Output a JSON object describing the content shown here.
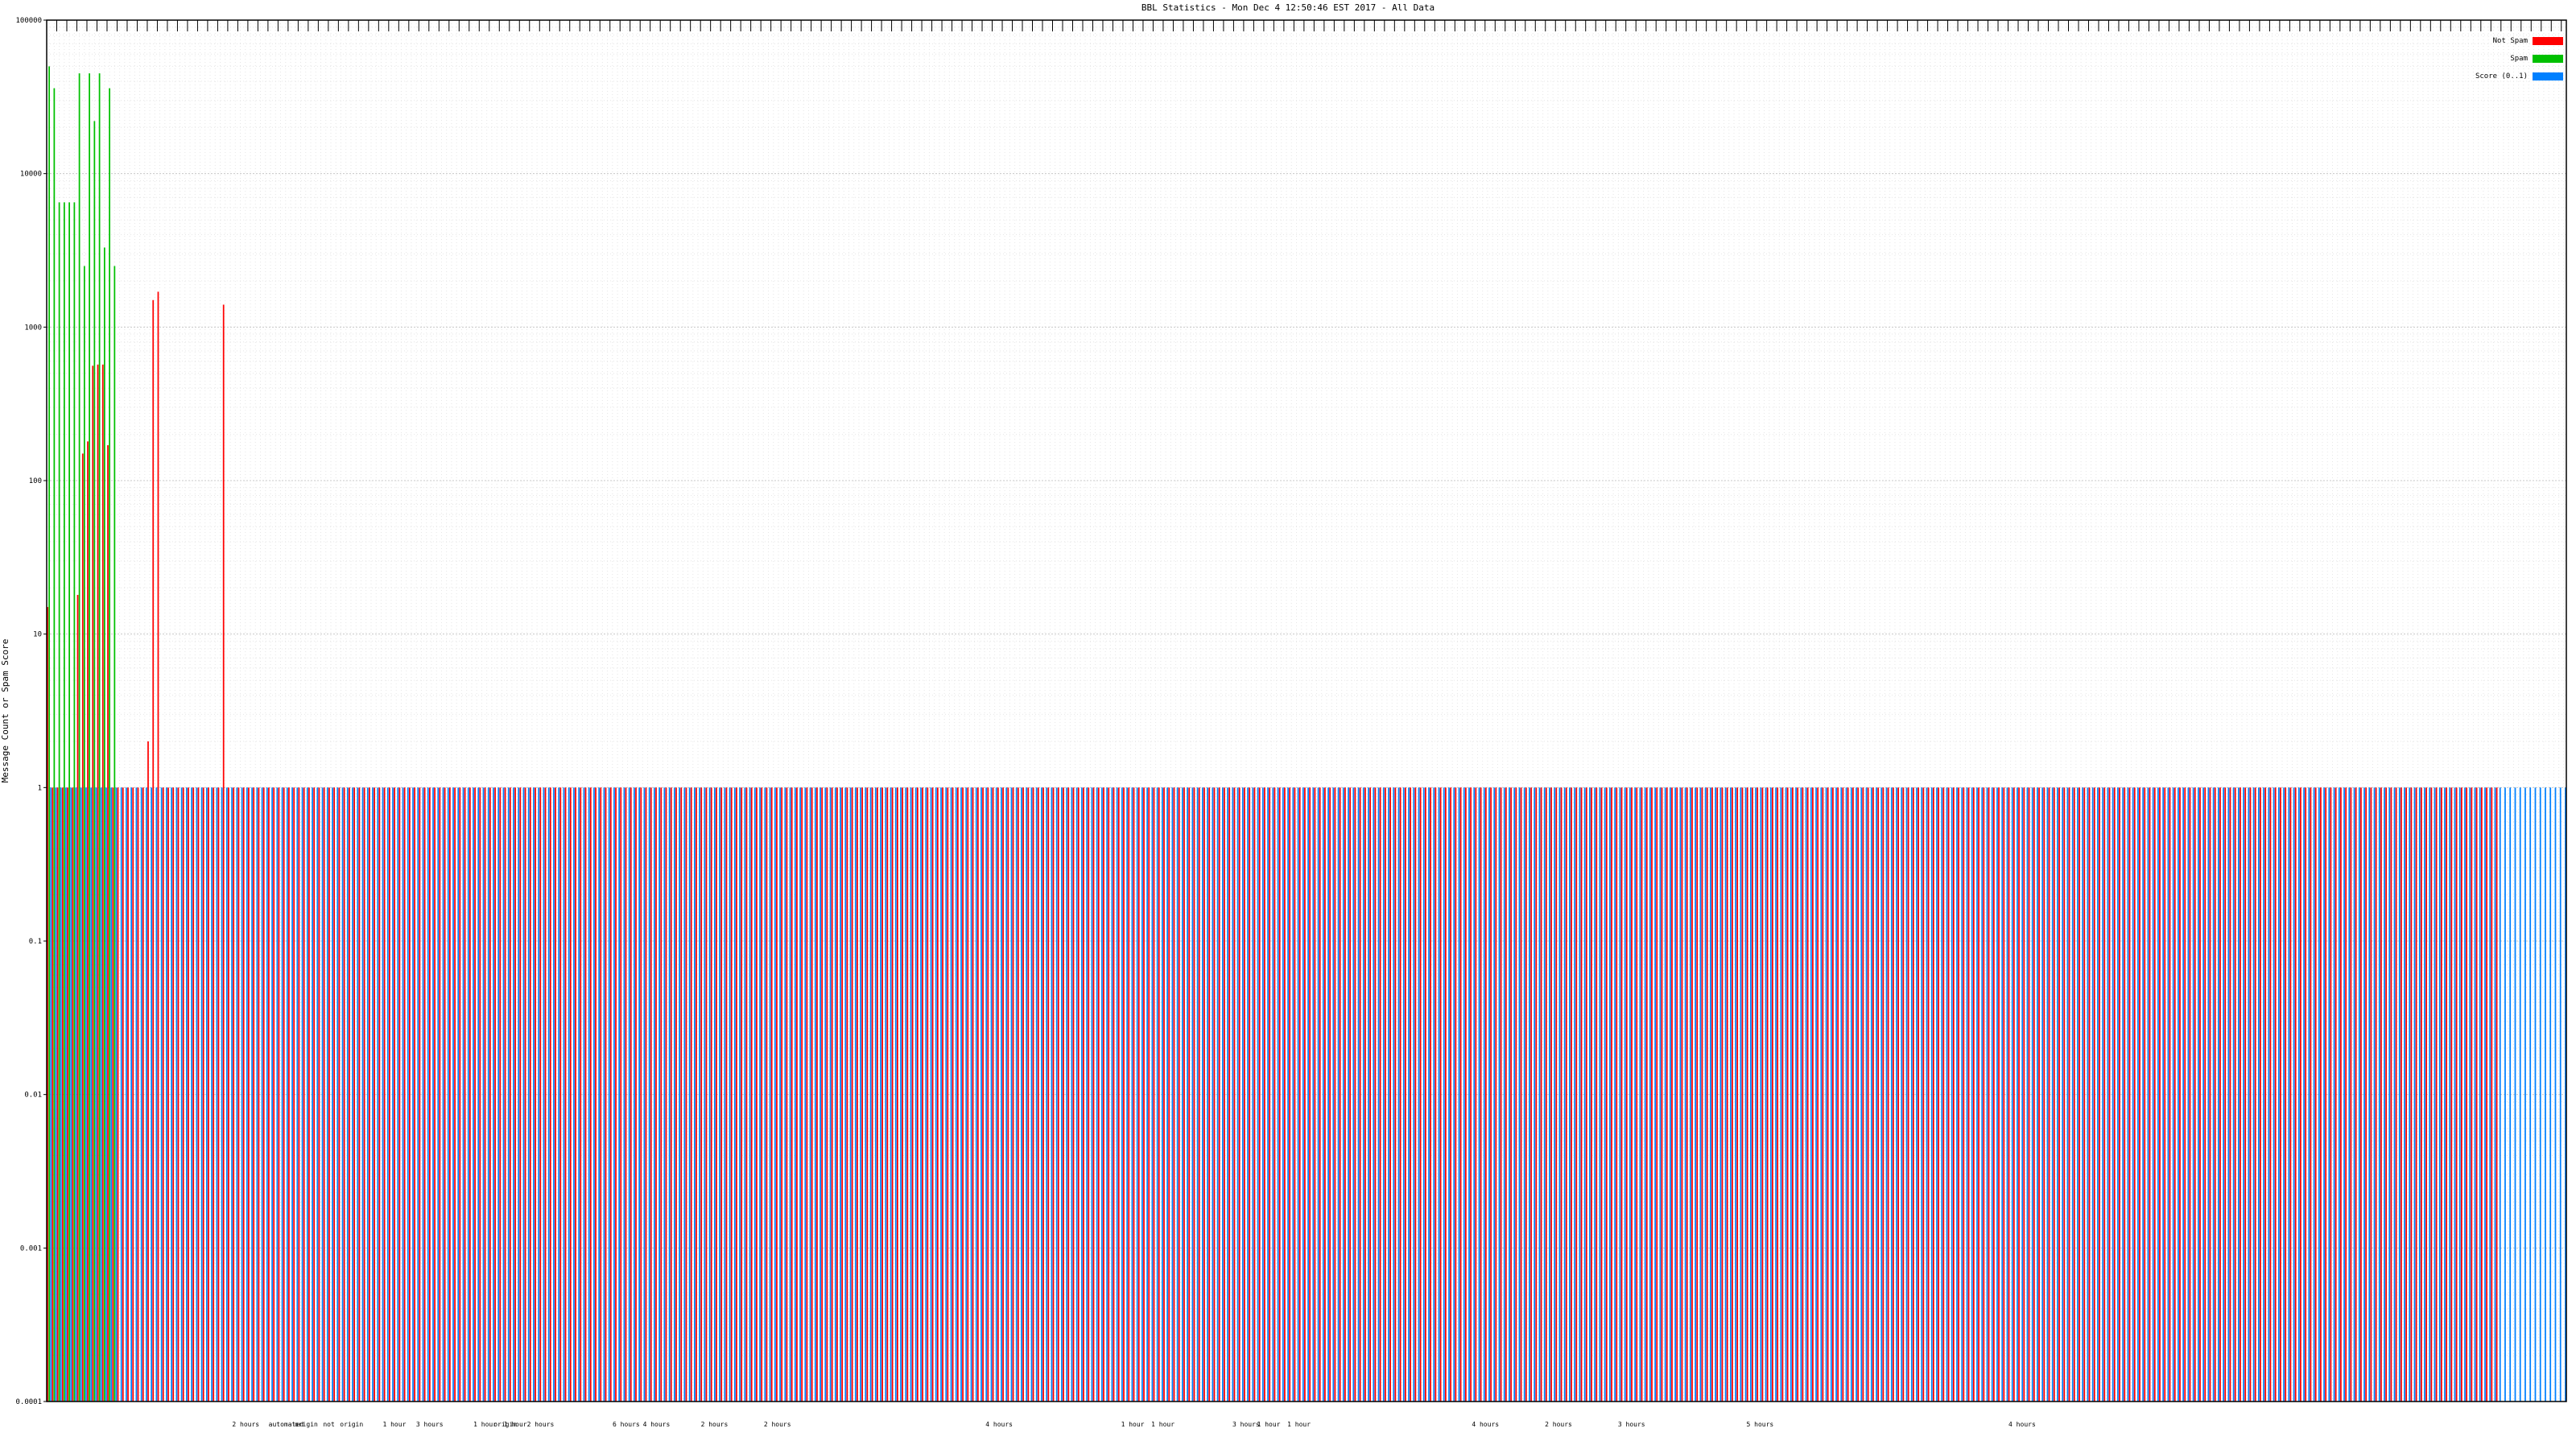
{
  "chart_data": {
    "type": "bar",
    "title": "BBL Statistics - Mon Dec  4 12:50:46 EST 2017 - All Data",
    "ylabel": "Message Count or Spam Score",
    "y_scale": "log",
    "ylim": [
      0.0001,
      100000
    ],
    "yticks": [
      "0.0001",
      "0.001",
      "0.01",
      "0.1",
      "1",
      "10",
      "100",
      "1000",
      "10000",
      "100000"
    ],
    "grid": true,
    "legend_position": "top-right",
    "colors": {
      "not_spam": "#ff0000",
      "spam": "#00c000",
      "score": "#0080ff"
    },
    "series": [
      {
        "name": "Not Spam",
        "color": "#ff0000",
        "values": [
          15,
          1,
          1,
          1,
          1,
          1,
          18,
          150,
          180,
          560,
          570,
          570,
          170,
          1,
          1,
          1,
          1,
          1,
          1,
          1,
          2,
          1500,
          1700,
          1,
          1,
          1,
          1,
          1,
          1,
          1,
          1,
          1,
          1,
          1,
          1,
          1400,
          1,
          1,
          1,
          1,
          1,
          1,
          1,
          1,
          1,
          1,
          1,
          1,
          1,
          1,
          1,
          1,
          1,
          1,
          1,
          1,
          1,
          1,
          1,
          1,
          1,
          1,
          1,
          1,
          1,
          1,
          1,
          1,
          1,
          1,
          1,
          1,
          1,
          1,
          1,
          1,
          1,
          1,
          1,
          1,
          1,
          1,
          1,
          1,
          1,
          1,
          1,
          1,
          1,
          1,
          1,
          1,
          1,
          1,
          1,
          1,
          1,
          1,
          1,
          1,
          1,
          1,
          1,
          1,
          1,
          1,
          1,
          1,
          1,
          1,
          1,
          1,
          1,
          1,
          1,
          1,
          1,
          1,
          1,
          1,
          1,
          1,
          1,
          1,
          1,
          1,
          1,
          1,
          1,
          1,
          1,
          1,
          1,
          1,
          1,
          1,
          1,
          1,
          1,
          1,
          1,
          1,
          1,
          1,
          1,
          1,
          1,
          1,
          1,
          1,
          1,
          1,
          1,
          1,
          1,
          1,
          1,
          1,
          1,
          1,
          1,
          1,
          1,
          1,
          1,
          1,
          1,
          1,
          1,
          1,
          1,
          1,
          1,
          1,
          1,
          1,
          1,
          1,
          1,
          1,
          1,
          1,
          1,
          1,
          1,
          1,
          1,
          1,
          1,
          1,
          1,
          1,
          1,
          1,
          1,
          1,
          1,
          1,
          1,
          1,
          1,
          1,
          1,
          1,
          1,
          1,
          1,
          1,
          1,
          1,
          1,
          1,
          1,
          1,
          1,
          1,
          1,
          1,
          1,
          1,
          1,
          1,
          1,
          1,
          1,
          1,
          1,
          1,
          1,
          1,
          1,
          1,
          1,
          1,
          1,
          1,
          1,
          1,
          1,
          1,
          1,
          1,
          1,
          1,
          1,
          1,
          1,
          1,
          1,
          1,
          1,
          1,
          1,
          1,
          1,
          1,
          1,
          1,
          1,
          1,
          1,
          1,
          1,
          1,
          1,
          1,
          1,
          1,
          1,
          1,
          1,
          1,
          1,
          1,
          1,
          1,
          1,
          1,
          1,
          1,
          1,
          1,
          1,
          1,
          1,
          1,
          1,
          1,
          1,
          1,
          1,
          1,
          1,
          1,
          1,
          1,
          1,
          1,
          1,
          1,
          1,
          1,
          1,
          1,
          1,
          1,
          1,
          1,
          1,
          1,
          1,
          1,
          1,
          1,
          1,
          1,
          1,
          1,
          1,
          1,
          1,
          1,
          1,
          1,
          1,
          1,
          1,
          1,
          1,
          1,
          1,
          1,
          1,
          1,
          1,
          1,
          1,
          1,
          1,
          1,
          1,
          1,
          1,
          1,
          1,
          1,
          1,
          1,
          1,
          1,
          1,
          1,
          1,
          1,
          1,
          1,
          1,
          1,
          1,
          1,
          1,
          1,
          1,
          1,
          1,
          1,
          1,
          1,
          1,
          1,
          1,
          1,
          1,
          1,
          1,
          1,
          1,
          1,
          1,
          1,
          1,
          1,
          1,
          1,
          1,
          1,
          1,
          1,
          1,
          1,
          1,
          1,
          1,
          1,
          1,
          1,
          1,
          1,
          1,
          1,
          1,
          1,
          1,
          1,
          1,
          1,
          1,
          1,
          1,
          1,
          1,
          1,
          1,
          1,
          1,
          1,
          1,
          1,
          1,
          1,
          1,
          1,
          1,
          1,
          1,
          1,
          1,
          1,
          1,
          1,
          1,
          1,
          1,
          1,
          1,
          1,
          1,
          1,
          1,
          1,
          1,
          1,
          1,
          1,
          1,
          1,
          1,
          1,
          1,
          1,
          1,
          1,
          1,
          1,
          1,
          1,
          1,
          1,
          1,
          1,
          1,
          1,
          1,
          1,
          1,
          1,
          1,
          1,
          1,
          1,
          1,
          1,
          1,
          1,
          1,
          1,
          1,
          1,
          1,
          1,
          1,
          1,
          1,
          1,
          1,
          1,
          1,
          1
        ]
      },
      {
        "name": "Spam",
        "color": "#00c000",
        "values": [
          50000,
          36000,
          6500,
          6500,
          6500,
          6500,
          45000,
          2500,
          45000,
          22000,
          45000,
          3300,
          36000,
          2500
        ]
      },
      {
        "name": "Score (0..1)",
        "color": "#0080ff",
        "values": [
          1,
          1,
          1,
          1,
          1,
          1,
          1,
          1,
          1,
          1,
          1,
          1,
          1,
          1,
          1,
          1,
          1,
          1,
          1,
          1,
          1,
          1,
          1,
          1,
          1,
          1,
          1,
          1,
          1,
          1,
          1,
          1,
          1,
          1,
          1,
          1,
          1,
          1,
          1,
          1,
          1,
          1,
          1,
          1,
          1,
          1,
          1,
          1,
          1,
          1,
          1,
          1,
          1,
          1,
          1,
          1,
          1,
          1,
          1,
          1,
          1,
          1,
          1,
          1,
          1,
          1,
          1,
          1,
          1,
          1,
          1,
          1,
          1,
          1,
          1,
          1,
          1,
          1,
          1,
          1,
          1,
          1,
          1,
          1,
          1,
          1,
          1,
          1,
          1,
          1,
          1,
          1,
          1,
          1,
          1,
          1,
          1,
          1,
          1,
          1,
          1,
          1,
          1,
          1,
          1,
          1,
          1,
          1,
          1,
          1,
          1,
          1,
          1,
          1,
          1,
          1,
          1,
          1,
          1,
          1,
          1,
          1,
          1,
          1,
          1,
          1,
          1,
          1,
          1,
          1,
          1,
          1,
          1,
          1,
          1,
          1,
          1,
          1,
          1,
          1,
          1,
          1,
          1,
          1,
          1,
          1,
          1,
          1,
          1,
          1,
          1,
          1,
          1,
          1,
          1,
          1,
          1,
          1,
          1,
          1,
          1,
          1,
          1,
          1,
          1,
          1,
          1,
          1,
          1,
          1,
          1,
          1,
          1,
          1,
          1,
          1,
          1,
          1,
          1,
          1,
          1,
          1,
          1,
          1,
          1,
          1,
          1,
          1,
          1,
          1,
          1,
          1,
          1,
          1,
          1,
          1,
          1,
          1,
          1,
          1,
          1,
          1,
          1,
          1,
          1,
          1,
          1,
          1,
          1,
          1,
          1,
          1,
          1,
          1,
          1,
          1,
          1,
          1,
          1,
          1,
          1,
          1,
          1,
          1,
          1,
          1,
          1,
          1,
          1,
          1,
          1,
          1,
          1,
          1,
          1,
          1,
          1,
          1,
          1,
          1,
          1,
          1,
          1,
          1,
          1,
          1,
          1,
          1,
          1,
          1,
          1,
          1,
          1,
          1,
          1,
          1,
          1,
          1,
          1,
          1,
          1,
          1,
          1,
          1,
          1,
          1,
          1,
          1,
          1,
          1,
          1,
          1,
          1,
          1,
          1,
          1,
          1,
          1,
          1,
          1,
          1,
          1,
          1,
          1,
          1,
          1,
          1,
          1,
          1,
          1,
          1,
          1,
          1,
          1,
          1,
          1,
          1,
          1,
          1,
          1,
          1,
          1,
          1,
          1,
          1,
          1,
          1,
          1,
          1,
          1,
          1,
          1,
          1,
          1,
          1,
          1,
          1,
          1,
          1,
          1,
          1,
          1,
          1,
          1,
          1,
          1,
          1,
          1,
          1,
          1,
          1,
          1,
          1,
          1,
          1,
          1,
          1,
          1,
          1,
          1,
          1,
          1,
          1,
          1,
          1,
          1,
          1,
          1,
          1,
          1,
          1,
          1,
          1,
          1,
          1,
          1,
          1,
          1,
          1,
          1,
          1,
          1,
          1,
          1,
          1,
          1,
          1,
          1,
          1,
          1,
          1,
          1,
          1,
          1,
          1,
          1,
          1,
          1,
          1,
          1,
          1,
          1,
          1,
          1,
          1,
          1,
          1,
          1,
          1,
          1,
          1,
          1,
          1,
          1,
          1,
          1,
          1,
          1,
          1,
          1,
          1,
          1,
          1,
          1,
          1,
          1,
          1,
          1,
          1,
          1,
          1,
          1,
          1,
          1,
          1,
          1,
          1,
          1,
          1,
          1,
          1,
          1,
          1,
          1,
          1,
          1,
          1,
          1,
          1,
          1,
          1,
          1,
          1,
          1,
          1,
          1,
          1,
          1,
          1,
          1,
          1,
          1,
          1,
          1,
          1,
          1,
          1,
          1,
          1,
          1,
          1,
          1,
          1,
          1,
          1,
          1,
          1,
          1,
          1,
          1,
          1,
          1,
          1,
          1,
          1,
          1,
          1,
          1,
          1,
          1,
          1,
          1,
          1,
          1,
          1,
          1,
          1,
          1,
          1,
          1,
          1,
          1,
          1,
          1,
          1,
          1,
          1,
          1,
          1,
          1,
          1,
          1,
          1,
          1,
          1,
          1,
          1,
          1,
          1,
          1,
          1
        ]
      }
    ],
    "category_groups": [
      {
        "label": "2 hours",
        "at": 0.079
      },
      {
        "label": "automated",
        "at": 0.095
      },
      {
        "label": "origin",
        "at": 0.103
      },
      {
        "label": "not",
        "at": 0.112
      },
      {
        "label": "origin",
        "at": 0.121
      },
      {
        "label": "1 hour",
        "at": 0.138
      },
      {
        "label": "3 hours",
        "at": 0.152
      },
      {
        "label": "1 hour",
        "at": 0.174
      },
      {
        "label": "origin",
        "at": 0.182
      },
      {
        "label": "1 hour",
        "at": 0.186
      },
      {
        "label": "2 hours",
        "at": 0.196
      },
      {
        "label": "6 hours",
        "at": 0.23
      },
      {
        "label": "4 hours",
        "at": 0.242
      },
      {
        "label": "2 hours",
        "at": 0.265
      },
      {
        "label": "2 hours",
        "at": 0.29
      },
      {
        "label": "4 hours",
        "at": 0.378
      },
      {
        "label": "1 hour",
        "at": 0.431
      },
      {
        "label": "1 hour",
        "at": 0.443
      },
      {
        "label": "3 hours",
        "at": 0.476
      },
      {
        "label": "1 hour",
        "at": 0.485
      },
      {
        "label": "1 hour",
        "at": 0.497
      },
      {
        "label": "4 hours",
        "at": 0.571
      },
      {
        "label": "2 hours",
        "at": 0.6
      },
      {
        "label": "3 hours",
        "at": 0.629
      },
      {
        "label": "5 hours",
        "at": 0.68
      },
      {
        "label": "4 hours",
        "at": 0.784
      }
    ]
  }
}
